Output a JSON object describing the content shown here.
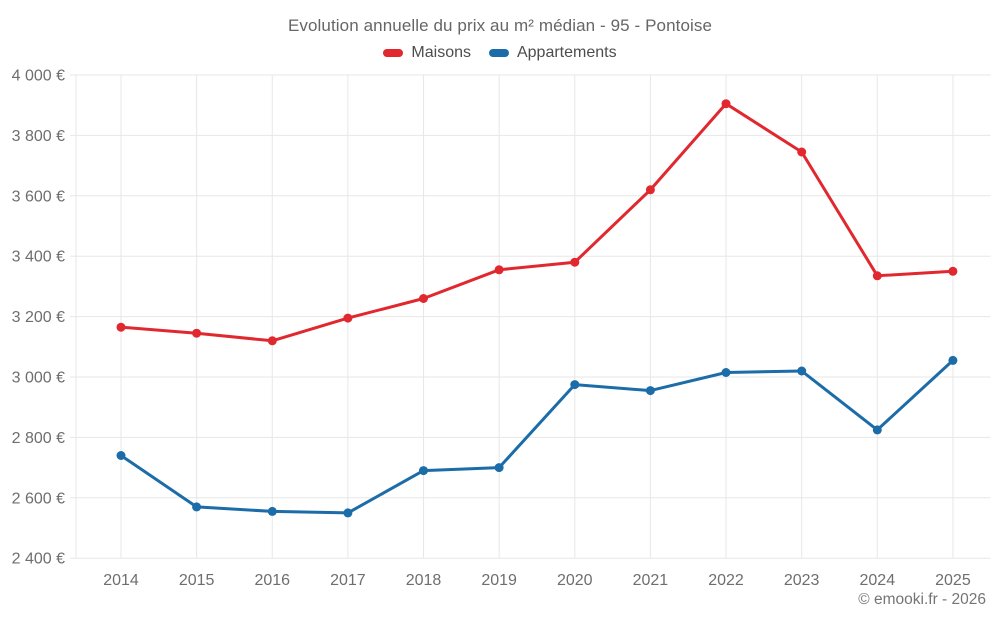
{
  "title": "Evolution annuelle du prix au m² médian - 95 - Pontoise",
  "footer": "© emooki.fr - 2026",
  "legend": [
    {
      "label": "Maisons",
      "color": "#e0282e"
    },
    {
      "label": "Appartements",
      "color": "#1b6ca8"
    }
  ],
  "colors": {
    "maisons": "#e0282e",
    "appartements": "#1b6ca8",
    "grid": "#e7e7e7",
    "axis_text": "#6e6e6e",
    "title_text": "#666666"
  },
  "chart_data": {
    "type": "line",
    "title": "Evolution annuelle du prix au m² médian - 95 - Pontoise",
    "categories": [
      "2014",
      "2015",
      "2016",
      "2017",
      "2018",
      "2019",
      "2020",
      "2021",
      "2022",
      "2023",
      "2024",
      "2025"
    ],
    "series": [
      {
        "name": "Maisons",
        "color": "#e0282e",
        "values": [
          3165,
          3145,
          3120,
          3195,
          3260,
          3355,
          3380,
          3620,
          3905,
          3745,
          3335,
          3350
        ]
      },
      {
        "name": "Appartements",
        "color": "#1b6ca8",
        "values": [
          2740,
          2570,
          2555,
          2550,
          2690,
          2700,
          2975,
          2955,
          3015,
          3020,
          2825,
          3055
        ]
      }
    ],
    "xlabel": "",
    "ylabel": "",
    "ylim": [
      2400,
      4000
    ],
    "ytick_step": 200,
    "ytick_suffix": " €",
    "grid": true,
    "legend_position": "top",
    "marker": "circle"
  }
}
